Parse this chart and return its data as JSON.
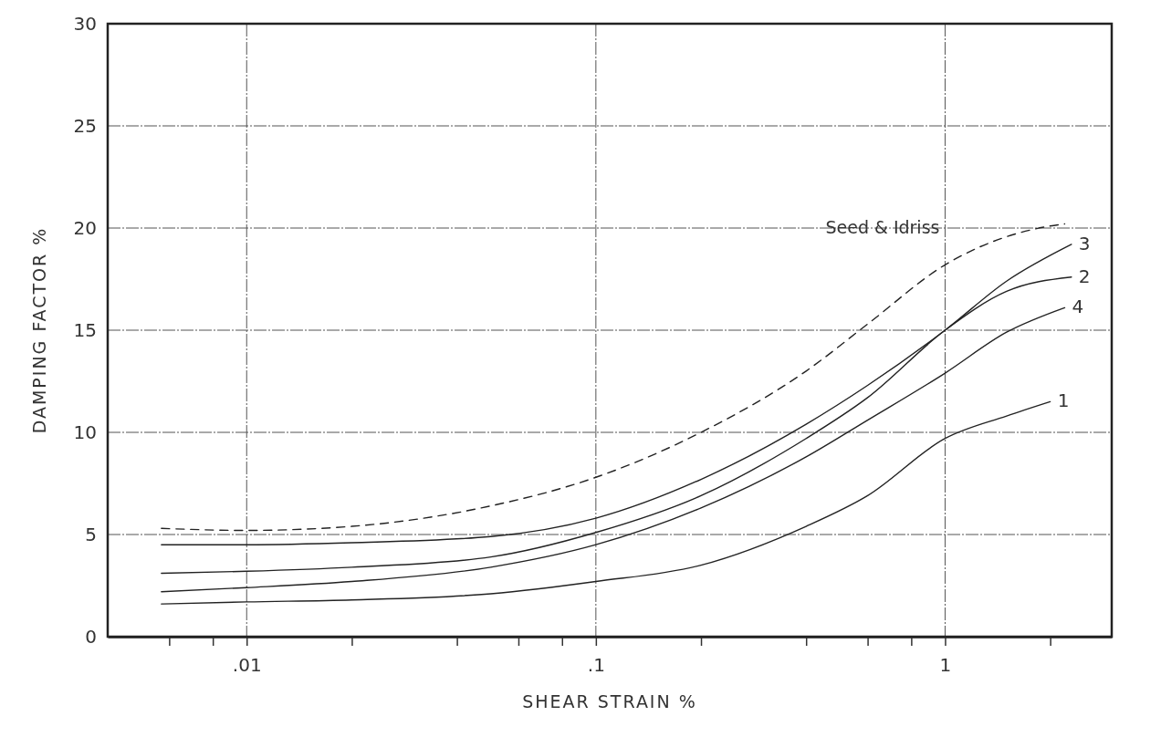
{
  "chart_data": {
    "type": "line",
    "xlabel": "SHEAR STRAIN %",
    "ylabel": "DAMPING FACTOR %",
    "log": "x",
    "grid": true,
    "marker": "none",
    "xlim": [
      0.004,
      3
    ],
    "ylim": [
      0,
      30
    ],
    "xticks": [
      {
        "value": 0.006,
        "label": null
      },
      {
        "value": 0.008,
        "label": null
      },
      {
        "value": 0.01,
        "label": ".01"
      },
      {
        "value": 0.02,
        "label": null
      },
      {
        "value": 0.04,
        "label": null
      },
      {
        "value": 0.06,
        "label": null
      },
      {
        "value": 0.08,
        "label": null
      },
      {
        "value": 0.1,
        "label": ".1"
      },
      {
        "value": 0.2,
        "label": null
      },
      {
        "value": 0.4,
        "label": null
      },
      {
        "value": 0.6,
        "label": null
      },
      {
        "value": 0.8,
        "label": null
      },
      {
        "value": 1,
        "label": "1"
      },
      {
        "value": 2,
        "label": null
      }
    ],
    "yticks": [
      0,
      5,
      10,
      15,
      20,
      25,
      30
    ],
    "series": [
      {
        "name": "Seed & Idriss",
        "color": "#222222",
        "line_style": "dashed",
        "x": [
          0.0057,
          0.01,
          0.02,
          0.05,
          0.1,
          0.2,
          0.4,
          0.6,
          1,
          2,
          2.2
        ],
        "values": [
          5.3,
          5.2,
          5.4,
          6.4,
          7.8,
          10.0,
          13.0,
          15.3,
          18.2,
          20.1,
          20.2
        ]
      },
      {
        "name": "3",
        "color": "#222222",
        "line_style": "solid",
        "x": [
          0.0057,
          0.01,
          0.02,
          0.05,
          0.1,
          0.2,
          0.4,
          0.6,
          1,
          1.5,
          2.3
        ],
        "values": [
          4.5,
          4.5,
          4.6,
          4.9,
          5.8,
          7.7,
          10.4,
          12.3,
          15.0,
          17.4,
          19.2
        ]
      },
      {
        "name": "2",
        "color": "#222222",
        "line_style": "solid",
        "x": [
          0.0057,
          0.01,
          0.02,
          0.05,
          0.1,
          0.2,
          0.4,
          0.6,
          1,
          1.5,
          2.3
        ],
        "values": [
          3.1,
          3.2,
          3.4,
          3.9,
          5.1,
          6.9,
          9.7,
          11.7,
          15.0,
          16.9,
          17.6
        ]
      },
      {
        "name": "4",
        "color": "#222222",
        "line_style": "solid",
        "x": [
          0.0057,
          0.01,
          0.02,
          0.05,
          0.1,
          0.2,
          0.4,
          0.6,
          1,
          1.5,
          2.2
        ],
        "values": [
          2.2,
          2.4,
          2.7,
          3.4,
          4.5,
          6.3,
          8.8,
          10.6,
          12.9,
          14.9,
          16.1
        ]
      },
      {
        "name": "1",
        "color": "#222222",
        "line_style": "solid",
        "x": [
          0.0057,
          0.01,
          0.02,
          0.05,
          0.1,
          0.2,
          0.4,
          0.6,
          1,
          1.5,
          2
        ],
        "values": [
          1.6,
          1.7,
          1.8,
          2.1,
          2.7,
          3.5,
          5.4,
          6.9,
          9.7,
          10.8,
          11.5
        ]
      }
    ]
  }
}
